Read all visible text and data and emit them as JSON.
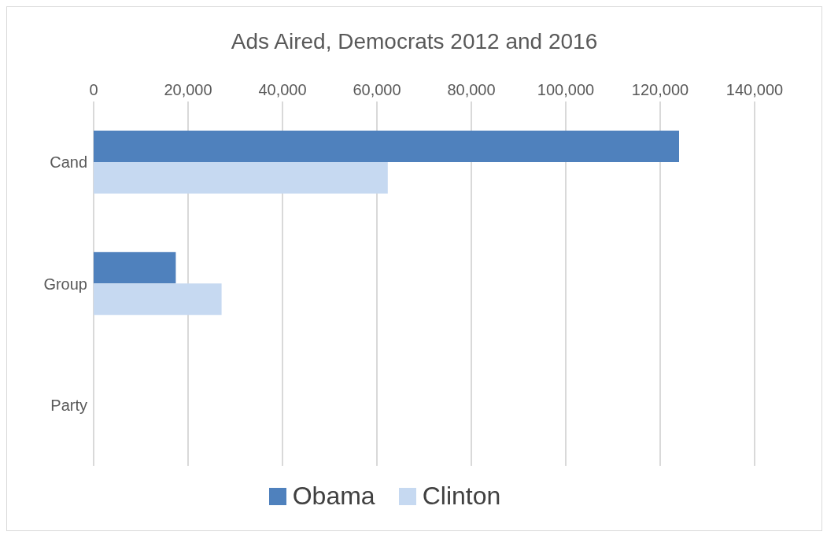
{
  "chart_data": {
    "type": "bar",
    "orientation": "horizontal",
    "title": "Ads Aired, Democrats 2012 and 2016",
    "categories": [
      "Cand",
      "Group",
      "Party"
    ],
    "series": [
      {
        "name": "Obama",
        "color": "#4f81bd",
        "values": [
          124000,
          17400,
          0
        ]
      },
      {
        "name": "Clinton",
        "color": "#c6d9f1",
        "values": [
          62300,
          27100,
          0
        ]
      }
    ],
    "xlim": [
      0,
      140000
    ],
    "xticks": [
      0,
      {
        "value": 20000,
        "label": "20,000"
      },
      {
        "value": 40000,
        "label": "40,000"
      },
      {
        "value": 60000,
        "label": "60,000"
      },
      {
        "value": 80000,
        "label": "80,000"
      },
      {
        "value": 100000,
        "label": "100,000"
      },
      {
        "value": 120000,
        "label": "120,000"
      },
      {
        "value": 140000,
        "label": "140,000"
      }
    ],
    "grid": "x",
    "legend": "bottom"
  }
}
